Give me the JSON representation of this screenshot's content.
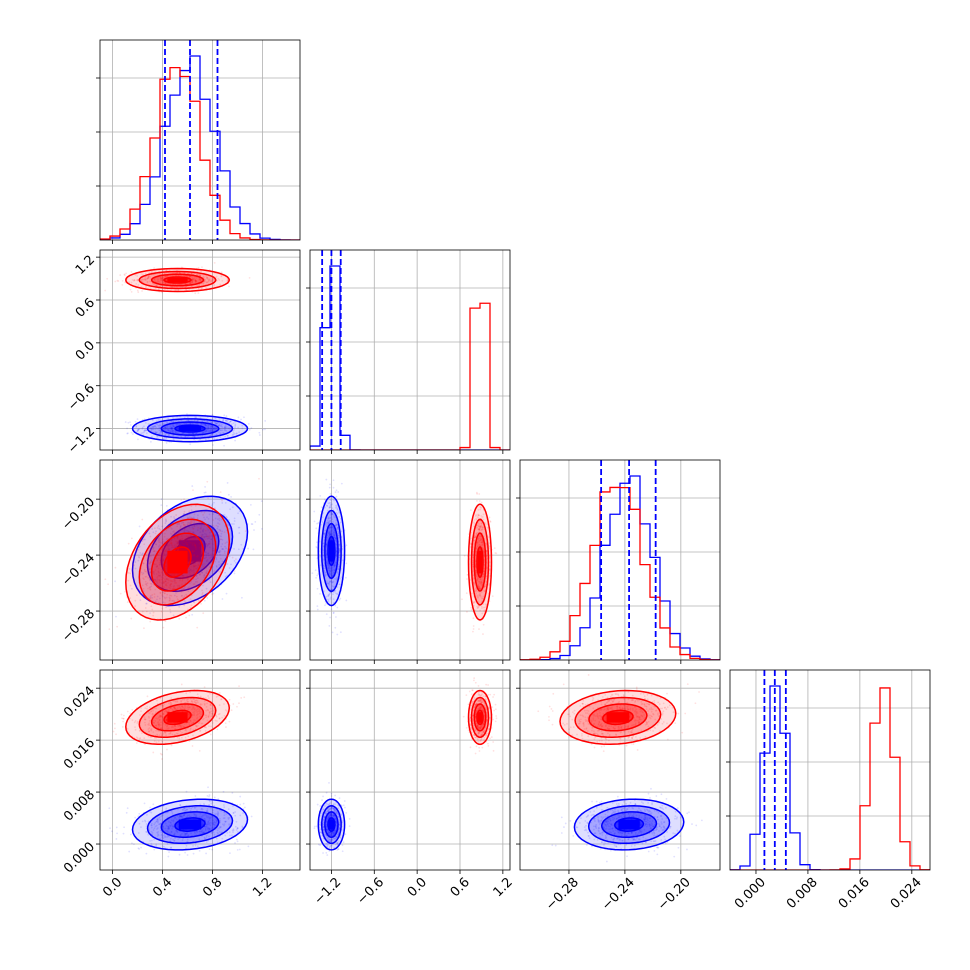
{
  "chart_data": {
    "type": "corner",
    "description_free": true,
    "params": [
      {
        "ticks": [
          0.0,
          0.4,
          0.8,
          1.2
        ],
        "tick_labels": [
          "0.0",
          "0.4",
          "0.8",
          "1.2"
        ],
        "range": [
          -0.1,
          1.5
        ]
      },
      {
        "ticks": [
          -1.2,
          -0.6,
          0.0,
          0.6,
          1.2
        ],
        "tick_labels": [
          "−1.2",
          "−0.6",
          "0.0",
          "0.6",
          "1.2"
        ],
        "range": [
          -1.5,
          1.3
        ]
      },
      {
        "ticks": [
          -0.28,
          -0.24,
          -0.2
        ],
        "tick_labels": [
          "−0.28",
          "−0.24",
          "−0.20"
        ],
        "range": [
          -0.315,
          -0.172
        ]
      },
      {
        "ticks": [
          0.0,
          0.008,
          0.016,
          0.024
        ],
        "tick_labels": [
          "0.000",
          "0.008",
          "0.016",
          "0.024"
        ],
        "range": [
          -0.004,
          0.0268
        ]
      }
    ],
    "series": [
      {
        "color": "#0000ff",
        "mean": [
          0.62,
          -1.2,
          -0.237,
          0.003
        ],
        "std": [
          0.2,
          0.08,
          0.017,
          0.0017
        ],
        "corr": {
          "0-2": 0.35,
          "0-3": 0.2,
          "2-3": 0.1
        }
      },
      {
        "color": "#ff0000",
        "mean": [
          0.52,
          0.88,
          -0.245,
          0.0195
        ],
        "std": [
          0.18,
          0.07,
          0.018,
          0.0018
        ],
        "corr": {
          "0-2": 0.35,
          "0-3": 0.35,
          "2-3": 0.15
        }
      }
    ],
    "quantile_lines": [
      [
        0.42,
        0.62,
        0.84
      ],
      [
        -1.33,
        -1.2,
        -1.07
      ],
      [
        -0.257,
        -0.237,
        -0.218
      ],
      [
        0.0013,
        0.0029,
        0.0046
      ]
    ],
    "quantile_color": "#0000ff",
    "grid": true,
    "legend": "none"
  }
}
